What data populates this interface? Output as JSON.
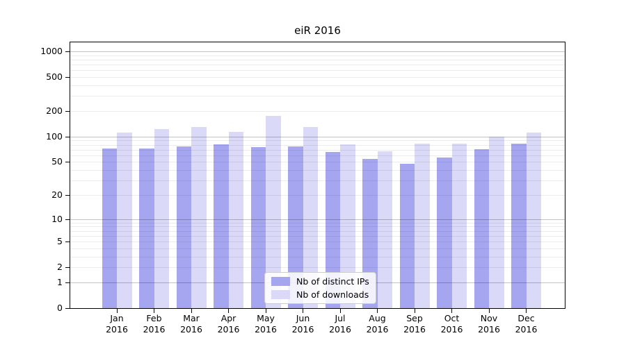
{
  "chart_data": {
    "type": "bar",
    "title": "eiR 2016",
    "xlabel": "",
    "ylabel": "",
    "scale": "log10(value+1)",
    "grid": "horizontal major + minor, drawn over bars",
    "legend_position": "bottom-center inside axes",
    "categories": [
      "Jan",
      "Feb",
      "Mar",
      "Apr",
      "May",
      "Jun",
      "Jul",
      "Aug",
      "Sep",
      "Oct",
      "Nov",
      "Dec"
    ],
    "x_tick_year": "2016",
    "series": [
      {
        "name": "Nb of distinct IPs",
        "color": "#a6a6f0",
        "values": [
          72,
          72,
          76,
          81,
          75,
          77,
          66,
          54,
          48,
          56,
          71,
          83
        ]
      },
      {
        "name": "Nb of downloads",
        "color": "#dadaf8",
        "values": [
          112,
          122,
          130,
          114,
          175,
          129,
          81,
          67,
          82,
          82,
          100,
          111
        ]
      }
    ],
    "y_ticks": [
      0,
      1,
      2,
      5,
      10,
      20,
      50,
      100,
      200,
      500,
      1000
    ],
    "ylim": [
      0,
      1270
    ],
    "colors": {
      "spine": "#000000",
      "text": "#000000",
      "grid_major": "#c4c4c4",
      "grid_minor": "#e8e8e8",
      "legend_border": "#cccccc",
      "background": "#ffffff"
    }
  }
}
